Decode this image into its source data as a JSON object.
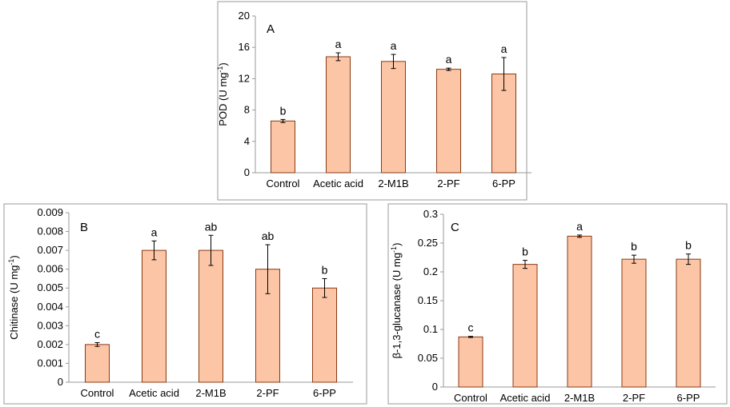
{
  "colors": {
    "bar_fill": "#fcc5a6",
    "bar_stroke": "#8a3a12",
    "axis": "#9a9a9a",
    "frame": "#9a9a9a"
  },
  "chart_data": [
    {
      "type": "bar",
      "panel_label": "A",
      "ylabel": "POD (U mg",
      "ylabel_sup": "-1",
      "ylabel_end": ")",
      "categories": [
        "Control",
        "Acetic acid",
        "2-M1B",
        "2-PF",
        "6-PP"
      ],
      "values": [
        6.6,
        14.8,
        14.2,
        13.2,
        12.6
      ],
      "errors": [
        0.2,
        0.5,
        0.9,
        0.15,
        2.1
      ],
      "letters": [
        "b",
        "a",
        "a",
        "a",
        "a"
      ],
      "ylim": [
        0,
        20
      ],
      "yticks": [
        "0",
        "4",
        "8",
        "12",
        "16",
        "20"
      ],
      "tick_values": [
        0,
        4,
        8,
        12,
        16,
        20
      ]
    },
    {
      "type": "bar",
      "panel_label": "B",
      "ylabel": "Chitinase (U mg",
      "ylabel_sup": "-1",
      "ylabel_end": ")",
      "categories": [
        "Control",
        "Acetic acid",
        "2-M1B",
        "2-PF",
        "6-PP"
      ],
      "values": [
        0.002,
        0.007,
        0.007,
        0.006,
        0.005
      ],
      "errors": [
        0.0001,
        0.0005,
        0.0008,
        0.0013,
        0.0005
      ],
      "letters": [
        "c",
        "a",
        "ab",
        "ab",
        "b"
      ],
      "ylim": [
        0,
        0.009
      ],
      "yticks": [
        "0",
        "0.001",
        "0.002",
        "0.003",
        "0.004",
        "0.005",
        "0.006",
        "0.007",
        "0.008",
        "0.009"
      ],
      "tick_values": [
        0,
        0.001,
        0.002,
        0.003,
        0.004,
        0.005,
        0.006,
        0.007,
        0.008,
        0.009
      ]
    },
    {
      "type": "bar",
      "panel_label": "C",
      "ylabel": "β-1,3-glucanase (U mg",
      "ylabel_sup": "-1",
      "ylabel_end": ")",
      "categories": [
        "Control",
        "Acetic acid",
        "2-M1B",
        "2-PF",
        "6-PP"
      ],
      "values": [
        0.087,
        0.213,
        0.262,
        0.222,
        0.222
      ],
      "errors": [
        0.001,
        0.007,
        0.002,
        0.007,
        0.009
      ],
      "letters": [
        "c",
        "b",
        "a",
        "b",
        "b"
      ],
      "ylim": [
        0,
        0.3
      ],
      "yticks": [
        "0",
        "0.05",
        "0.1",
        "0.15",
        "0.2",
        "0.25",
        "0.3"
      ],
      "tick_values": [
        0,
        0.05,
        0.1,
        0.15,
        0.2,
        0.25,
        0.3
      ]
    }
  ]
}
